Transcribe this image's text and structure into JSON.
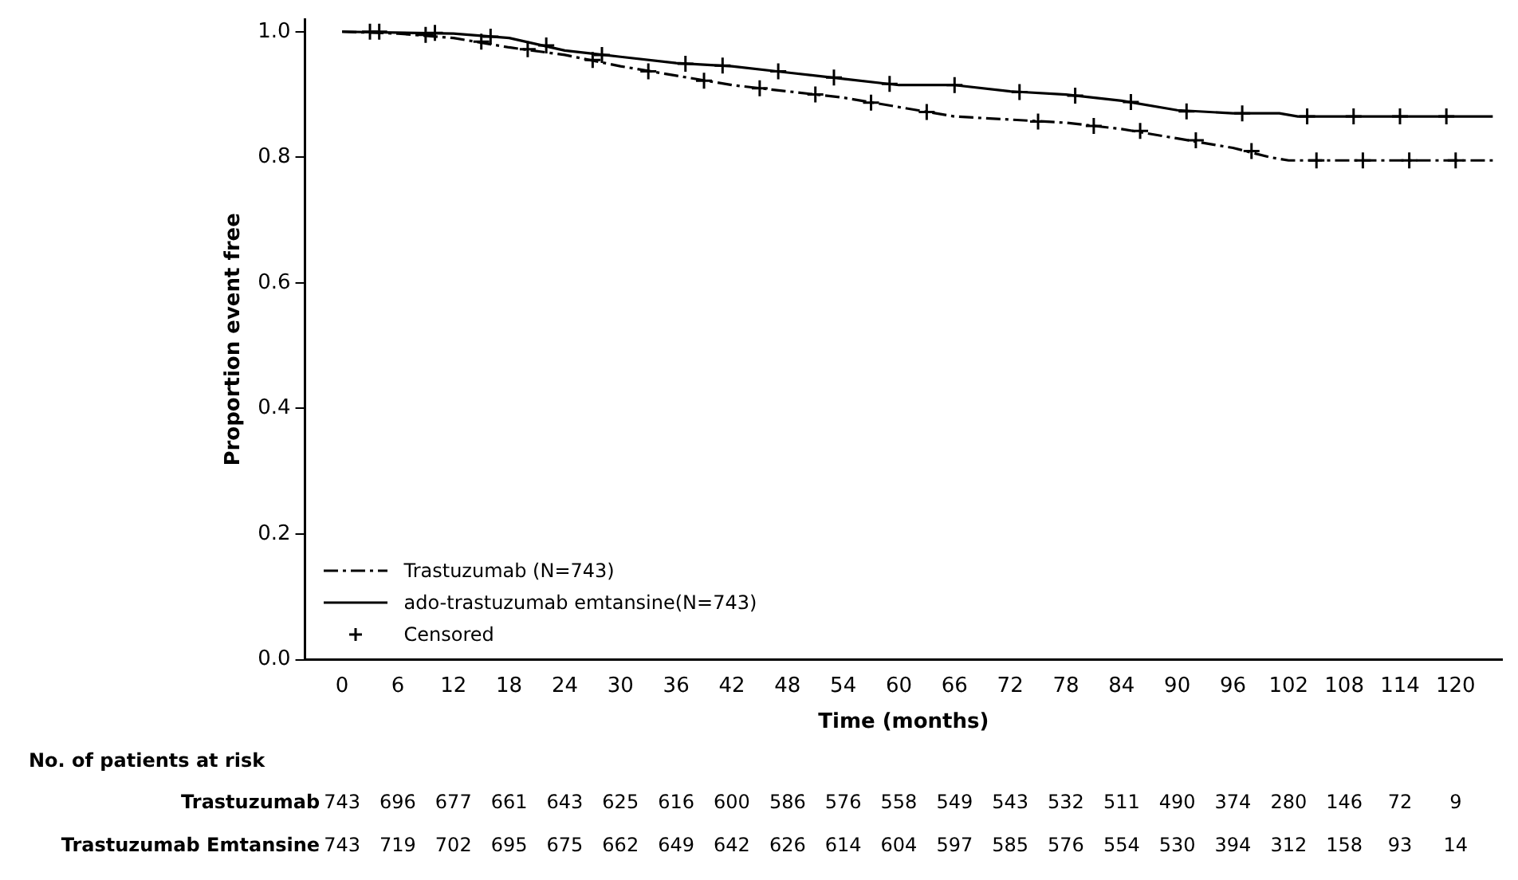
{
  "chart_data": {
    "type": "line",
    "xlabel": "Time (months)",
    "ylabel": "Proportion event free",
    "xlim": [
      -4,
      125
    ],
    "xticks": [
      0,
      6,
      12,
      18,
      24,
      30,
      36,
      42,
      48,
      54,
      60,
      66,
      72,
      78,
      84,
      90,
      96,
      102,
      108,
      114,
      120
    ],
    "ylim": [
      0,
      1.02
    ],
    "yticks": [
      {
        "value": 0,
        "label": "0.0"
      },
      {
        "value": 0.2,
        "label": "0.2"
      },
      {
        "value": 0.4,
        "label": "0.4"
      },
      {
        "value": 0.6,
        "label": "0.6"
      },
      {
        "value": 0.8,
        "label": "0.8"
      },
      {
        "value": 1,
        "label": "1.0"
      }
    ],
    "grid": false,
    "legend": "bottom left",
    "series": [
      {
        "name": "Trastuzumab (N=743)",
        "color": "#000000",
        "line_style": "dashed",
        "x": [
          0,
          6,
          12,
          18,
          24,
          30,
          36,
          42,
          48,
          54,
          60,
          66,
          72,
          78,
          84,
          90,
          96,
          100,
          102,
          124
        ],
        "values": [
          1.0,
          0.997,
          0.99,
          0.975,
          0.963,
          0.945,
          0.93,
          0.915,
          0.905,
          0.895,
          0.88,
          0.865,
          0.86,
          0.855,
          0.845,
          0.83,
          0.815,
          0.8,
          0.795,
          0.795
        ]
      },
      {
        "name": "ado-trastuzumab emtansine(N=743)",
        "color": "#000000",
        "line_style": "solid",
        "x": [
          0,
          12,
          18,
          24,
          30,
          36,
          42,
          48,
          54,
          60,
          66,
          72,
          78,
          84,
          90,
          96,
          101,
          103,
          124
        ],
        "values": [
          1.0,
          0.997,
          0.99,
          0.97,
          0.96,
          0.95,
          0.945,
          0.935,
          0.925,
          0.915,
          0.915,
          0.905,
          0.9,
          0.89,
          0.875,
          0.87,
          0.87,
          0.865,
          0.865
        ]
      },
      {
        "name": "Censored",
        "type": "scatter",
        "marker": "cross",
        "color": "#000000",
        "x": [
          3,
          9,
          15,
          20,
          27,
          33,
          39,
          45,
          51,
          57,
          63,
          75,
          81,
          86,
          92,
          98,
          105,
          110,
          115,
          120,
          4,
          10,
          16,
          22,
          28,
          37,
          41,
          47,
          53,
          59,
          66,
          73,
          79,
          85,
          91,
          97,
          104,
          109,
          114,
          119
        ],
        "values": [
          1.0,
          0.995,
          0.984,
          0.972,
          0.955,
          0.937,
          0.922,
          0.91,
          0.9,
          0.887,
          0.872,
          0.857,
          0.85,
          0.842,
          0.827,
          0.81,
          0.795,
          0.795,
          0.795,
          0.795,
          1.0,
          0.998,
          0.992,
          0.978,
          0.963,
          0.949,
          0.946,
          0.937,
          0.927,
          0.917,
          0.915,
          0.904,
          0.898,
          0.888,
          0.873,
          0.87,
          0.865,
          0.865,
          0.865,
          0.865
        ]
      }
    ],
    "annotations": [
      "No. of patients at risk",
      "Trastuzumab",
      "743",
      "696",
      "677",
      "661",
      "643",
      "625",
      "616",
      "600",
      "586",
      "576",
      "558",
      "549",
      "543",
      "532",
      "511",
      "490",
      "374",
      "280",
      "146",
      "72",
      "9",
      "Trastuzumab Emtansine",
      "743",
      "719",
      "702",
      "695",
      "675",
      "662",
      "649",
      "642",
      "626",
      "614",
      "604",
      "597",
      "585",
      "576",
      "554",
      "530",
      "394",
      "312",
      "158",
      "93",
      "14"
    ]
  }
}
